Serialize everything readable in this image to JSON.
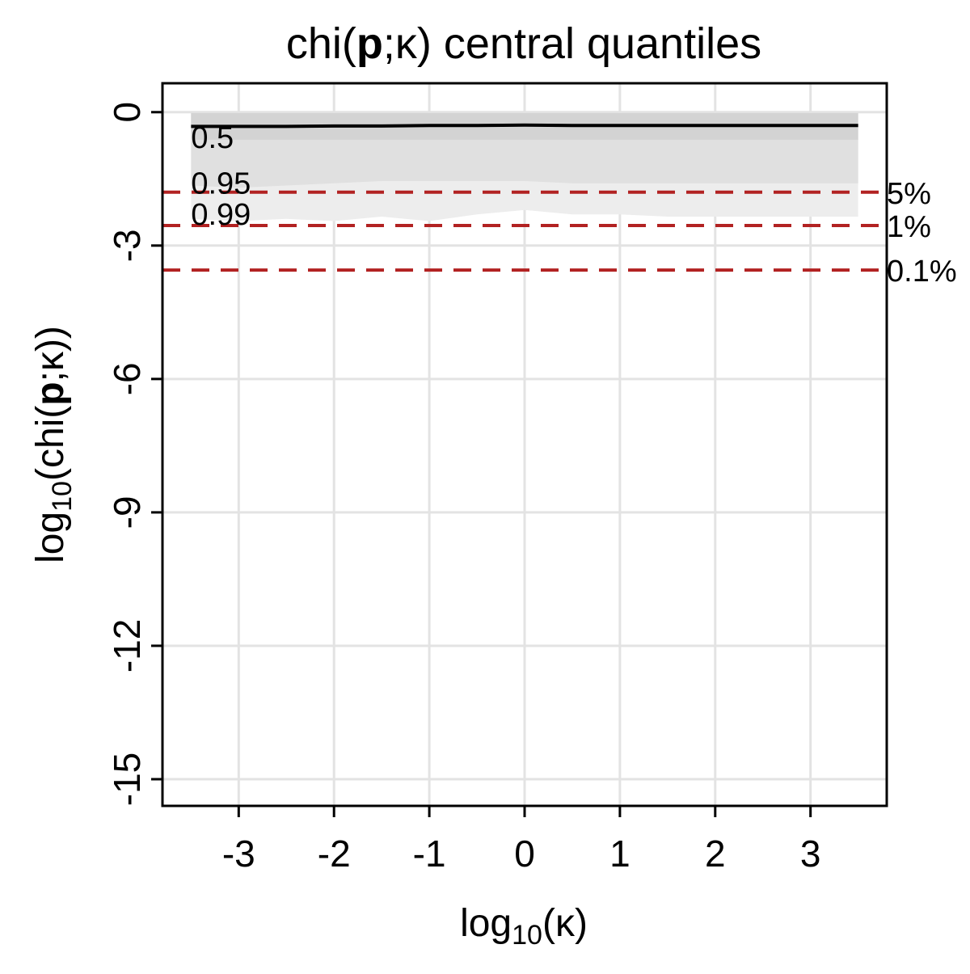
{
  "chart_data": {
    "type": "line",
    "title": {
      "pre": "chi(",
      "bold": "p",
      "post": ";κ) central quantiles"
    },
    "xlabel": {
      "pre": "log",
      "sub": "10",
      "post": "(κ)"
    },
    "ylabel": {
      "pre": "log",
      "sub": "10",
      "mid": "(chi(",
      "bold": "p",
      "post": ";κ))"
    },
    "xlim": [
      -3.8,
      3.8
    ],
    "ylim": [
      -15.6,
      0.65
    ],
    "x_ticks": [
      -3,
      -2,
      -1,
      0,
      1,
      2,
      3
    ],
    "x_tick_labels": [
      "-3",
      "-2",
      "-1",
      "0",
      "1",
      "2",
      "3"
    ],
    "y_ticks": [
      0,
      -3,
      -6,
      -9,
      -12,
      -15
    ],
    "y_tick_labels": [
      "0",
      "-3",
      "-6",
      "-9",
      "-12",
      "-15"
    ],
    "grid": true,
    "x": [
      -3.5,
      -3.0,
      -2.5,
      -2.0,
      -1.5,
      -1.0,
      -0.5,
      0.0,
      0.5,
      1.0,
      1.5,
      2.0,
      2.5,
      3.0,
      3.5
    ],
    "median": [
      -0.32,
      -0.32,
      -0.32,
      -0.31,
      -0.31,
      -0.3,
      -0.3,
      -0.29,
      -0.3,
      -0.3,
      -0.3,
      -0.3,
      -0.3,
      -0.3,
      -0.3
    ],
    "band_top": -0.02,
    "band_50_low": [
      -0.62,
      -0.62,
      -0.62,
      -0.62,
      -0.62,
      -0.62,
      -0.62,
      -0.62,
      -0.62,
      -0.62,
      -0.62,
      -0.62,
      -0.62,
      -0.62,
      -0.62
    ],
    "band_95_low": [
      -1.65,
      -1.7,
      -1.65,
      -1.6,
      -1.55,
      -1.55,
      -1.55,
      -1.55,
      -1.6,
      -1.6,
      -1.6,
      -1.6,
      -1.6,
      -1.6,
      -1.6
    ],
    "band_99_low": [
      -2.4,
      -2.45,
      -2.4,
      -2.45,
      -2.35,
      -2.45,
      -2.3,
      -2.2,
      -2.3,
      -2.3,
      -2.35,
      -2.35,
      -2.35,
      -2.35,
      -2.35
    ],
    "quantile_labels": [
      {
        "text": "0.5",
        "x": -3.5,
        "y": -0.55
      },
      {
        "text": "0.95",
        "x": -3.5,
        "y": -1.58
      },
      {
        "text": "0.99",
        "x": -3.5,
        "y": -2.28
      }
    ],
    "reference_lines": [
      {
        "label": "5%",
        "y": -1.8
      },
      {
        "label": "1%",
        "y": -2.55
      },
      {
        "label": "0.1%",
        "y": -3.55
      }
    ],
    "colors": {
      "median": "#000000",
      "band_50": "#d3d3d3",
      "band_95": "#e0e0e0",
      "band_99": "#ededed",
      "reference": "#b22222",
      "grid": "#e3e3e3",
      "axis": "#000000"
    }
  }
}
